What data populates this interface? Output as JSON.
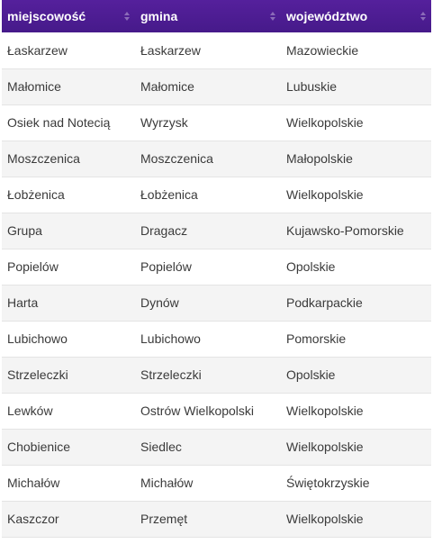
{
  "columns": [
    {
      "key": "miejscowosc",
      "label": "miejscowość"
    },
    {
      "key": "gmina",
      "label": "gmina"
    },
    {
      "key": "wojewodztwo",
      "label": "województwo"
    }
  ],
  "rows": [
    [
      "Łaskarzew",
      "Łaskarzew",
      "Mazowieckie"
    ],
    [
      "Małomice",
      "Małomice",
      "Lubuskie"
    ],
    [
      "Osiek nad Notecią",
      "Wyrzysk",
      "Wielkopolskie"
    ],
    [
      "Moszczenica",
      "Moszczenica",
      "Małopolskie"
    ],
    [
      "Łobżenica",
      "Łobżenica",
      "Wielkopolskie"
    ],
    [
      "Grupa",
      "Dragacz",
      "Kujawsko-Pomorskie"
    ],
    [
      "Popielów",
      "Popielów",
      "Opolskie"
    ],
    [
      "Harta",
      "Dynów",
      "Podkarpackie"
    ],
    [
      "Lubichowo",
      "Lubichowo",
      "Pomorskie"
    ],
    [
      "Strzeleczki",
      "Strzeleczki",
      "Opolskie"
    ],
    [
      "Lewków",
      "Ostrów Wielkopolski",
      "Wielkopolskie"
    ],
    [
      "Chobienice",
      "Siedlec",
      "Wielkopolskie"
    ],
    [
      "Michałów",
      "Michałów",
      "Świętokrzyskie"
    ],
    [
      "Kaszczor",
      "Przemęt",
      "Wielkopolskie"
    ]
  ],
  "colors": {
    "header_bg": "#4c1d95",
    "header_text": "#ffffff",
    "row_alt_bg": "#f4f4f4"
  },
  "icons": {
    "sort": "sort-arrows-icon"
  }
}
